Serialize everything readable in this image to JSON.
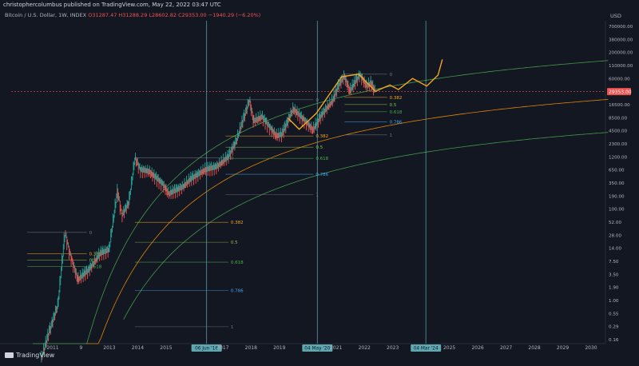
{
  "header": {
    "publisher": "christophercolumbus published on TradingView.com, May 22, 2022 03:47 UTC"
  },
  "legend": {
    "symbol": "Bitcoin / U.S. Dollar, 1W, INDEX",
    "open": "O31287.47",
    "high": "H31288.29",
    "low": "L28602.82",
    "close": "C29353.00",
    "change": "−1940.29 (−6.20%)"
  },
  "brand": {
    "name": "TradingView"
  },
  "chart_data": {
    "type": "line",
    "yscale": "log",
    "currency_label": "USD",
    "price_ticks": [
      "700000.00",
      "380000.00",
      "200000.00",
      "110000.00",
      "60000.00",
      "29353.00",
      "16500.00",
      "8500.00",
      "4500.00",
      "2300.00",
      "1200.00",
      "650.00",
      "350.00",
      "190.00",
      "100.00",
      "52.00",
      "28.00",
      "14.00",
      "7.50",
      "3.50",
      "1.90",
      "1.00",
      "0.55",
      "0.29",
      "0.16"
    ],
    "last_price": "29353.00",
    "x_ticks": [
      "2011",
      "9",
      "2013",
      "2014",
      "2015",
      "2017",
      "2018",
      "2019",
      "2021",
      "2022",
      "2023",
      "2025",
      "2026",
      "2027",
      "2028",
      "2029",
      "2030"
    ],
    "vertical_markers": [
      {
        "label": "06 Jun '16"
      },
      {
        "label": "04 May '20"
      },
      {
        "label": "04 Mar '24"
      }
    ],
    "fib_levels_cycle1": [
      "0",
      "0.382",
      "0.5",
      "0.618"
    ],
    "fib_levels_cycle2": [
      "0",
      "0.382",
      "0.5",
      "0.618",
      "0.786",
      "1"
    ],
    "fib_levels_cycle3": [
      "0",
      "0.382",
      "0.5",
      "0.618",
      "0.786",
      "1"
    ],
    "fib_levels_cycle4": [
      "0",
      "0.382",
      "0.5",
      "0.618",
      "0.786",
      "1"
    ],
    "colors": {
      "background": "#131722",
      "up": "#26a69a",
      "down": "#ef5350",
      "channel_upper": "#4caf50",
      "channel_mid": "#ff9800",
      "projection": "#f5a623",
      "marker": "#5fa8b0",
      "fib_382": "#f5a623",
      "fib_5": "#8bc34a",
      "fib_618": "#4caf50",
      "fib_786": "#42a5f5"
    }
  }
}
